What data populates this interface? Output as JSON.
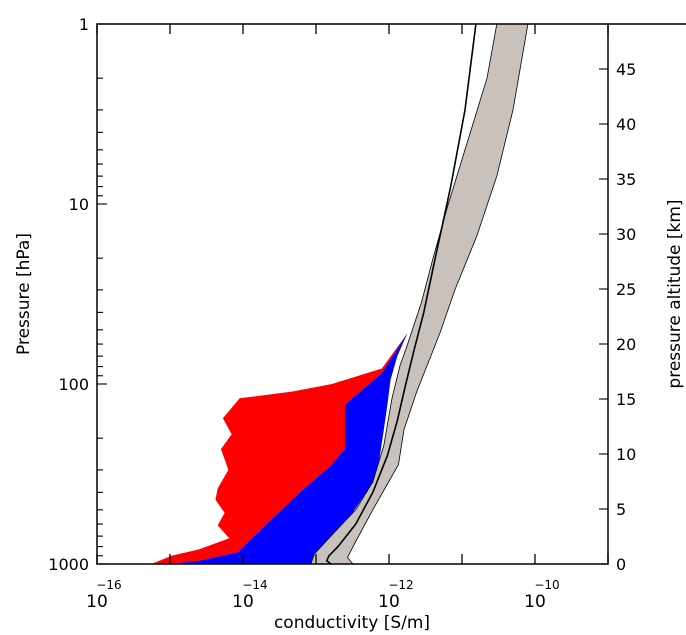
{
  "chart_data": {
    "type": "area",
    "title": "",
    "xlabel": "conductivity [S/m]",
    "ylabel": "Pressure [hPa]",
    "y2label": "pressure altitude [km]",
    "xscale": "log",
    "yscale": "log",
    "y_inverted": true,
    "xlim": [
      1e-16,
      1e-09
    ],
    "ylim": [
      1000,
      1
    ],
    "x_ticks": [
      {
        "base": "10",
        "exp": "−16",
        "value": 1e-16
      },
      {
        "base": "10",
        "exp": "−14",
        "value": 1e-14
      },
      {
        "base": "10",
        "exp": "−12",
        "value": 1e-12
      },
      {
        "base": "10",
        "exp": "−10",
        "value": 1e-10
      }
    ],
    "y_ticks": [
      {
        "label": "1",
        "value": 1
      },
      {
        "label": "10",
        "value": 10
      },
      {
        "label": "100",
        "value": 100
      },
      {
        "label": "1000",
        "value": 1000
      }
    ],
    "y2_ticks": [
      {
        "label": "0",
        "value": 0
      },
      {
        "label": "5",
        "value": 5
      },
      {
        "label": "10",
        "value": 10
      },
      {
        "label": "15",
        "value": 15
      },
      {
        "label": "20",
        "value": 20
      },
      {
        "label": "25",
        "value": 25
      },
      {
        "label": "30",
        "value": 30
      },
      {
        "label": "35",
        "value": 35
      },
      {
        "label": "40",
        "value": 40
      },
      {
        "label": "45",
        "value": 45
      }
    ],
    "colors": {
      "red": "#ff0000",
      "blue": "#0000ff",
      "gray_band": "#c9c1bc",
      "line": "#000000"
    },
    "series": [
      {
        "fill": "red",
        "points": [
          [
            5.6e-16,
            1000
          ],
          [
            1.05e-15,
            900
          ],
          [
            2.5e-15,
            830
          ],
          [
            6.5e-15,
            720
          ],
          [
            4.5e-15,
            610
          ],
          [
            5.6e-15,
            520
          ],
          [
            4.2e-15,
            440
          ],
          [
            4.5e-15,
            380
          ],
          [
            6.3e-15,
            300
          ],
          [
            5e-15,
            230
          ],
          [
            7e-15,
            190
          ],
          [
            5.3e-15,
            155
          ],
          [
            9e-15,
            120
          ],
          [
            4.8e-14,
            110
          ],
          [
            1.65e-13,
            100
          ],
          [
            8e-13,
            82
          ],
          [
            1.8e-12,
            52
          ],
          [
            8e-13,
            87
          ],
          [
            2.5e-13,
            130
          ],
          [
            2.5e-13,
            170
          ],
          [
            2.5e-13,
            230
          ],
          [
            1.5e-13,
            290
          ],
          [
            6e-14,
            400
          ],
          [
            2.3e-14,
            580
          ],
          [
            8.5e-15,
            860
          ],
          [
            2.5e-15,
            960
          ],
          [
            1e-15,
            1000
          ]
        ]
      },
      {
        "fill": "blue",
        "points": [
          [
            1e-15,
            1000
          ],
          [
            2.5e-15,
            960
          ],
          [
            8.5e-15,
            860
          ],
          [
            2.3e-14,
            580
          ],
          [
            6e-14,
            400
          ],
          [
            1.5e-13,
            290
          ],
          [
            2.5e-13,
            230
          ],
          [
            2.5e-13,
            170
          ],
          [
            2.5e-13,
            130
          ],
          [
            8e-13,
            87
          ],
          [
            1.8e-12,
            52
          ],
          [
            1.3e-12,
            70
          ],
          [
            1.05e-12,
            95
          ],
          [
            9.5e-13,
            130
          ],
          [
            8.5e-13,
            180
          ],
          [
            7.5e-13,
            250
          ],
          [
            7e-13,
            320
          ],
          [
            4e-13,
            450
          ],
          [
            2.2e-13,
            650
          ],
          [
            1.2e-13,
            900
          ],
          [
            8.5e-14,
            1000
          ]
        ]
      },
      {
        "fill": "gray_band",
        "points": [
          [
            8e-11,
            1
          ],
          [
            5e-11,
            3
          ],
          [
            3e-11,
            7
          ],
          [
            1.6e-11,
            15
          ],
          [
            8e-12,
            30
          ],
          [
            5e-12,
            52
          ],
          [
            3.5e-12,
            75
          ],
          [
            2.4e-12,
            110
          ],
          [
            1.6e-12,
            180
          ],
          [
            1.35e-12,
            280
          ],
          [
            6e-13,
            500
          ],
          [
            3.5e-13,
            750
          ],
          [
            2.7e-13,
            920
          ],
          [
            3.2e-13,
            1000
          ],
          [
            8.5e-14,
            1000
          ],
          [
            9.5e-14,
            880
          ],
          [
            1.6e-13,
            700
          ],
          [
            3.5e-13,
            500
          ],
          [
            6e-13,
            350
          ],
          [
            8.5e-13,
            220
          ],
          [
            1.1e-12,
            120
          ],
          [
            1.4e-12,
            80
          ],
          [
            1.8e-12,
            60
          ],
          [
            2.8e-12,
            35
          ],
          [
            4e-12,
            20
          ],
          [
            6.5e-12,
            10
          ],
          [
            1.1e-11,
            5
          ],
          [
            2.2e-11,
            2
          ],
          [
            3e-11,
            1
          ]
        ]
      }
    ],
    "median_line": [
      [
        1.55e-11,
        1
      ],
      [
        1.1e-11,
        3
      ],
      [
        7e-12,
        8
      ],
      [
        4.3e-12,
        20
      ],
      [
        3e-12,
        40
      ],
      [
        2.2e-12,
        65
      ],
      [
        1.7e-12,
        100
      ],
      [
        1.3e-12,
        160
      ],
      [
        9.5e-13,
        250
      ],
      [
        6e-13,
        400
      ],
      [
        3.5e-13,
        600
      ],
      [
        2e-13,
        800
      ],
      [
        1.5e-13,
        900
      ],
      [
        1.4e-13,
        960
      ],
      [
        1.6e-13,
        1000
      ]
    ]
  }
}
